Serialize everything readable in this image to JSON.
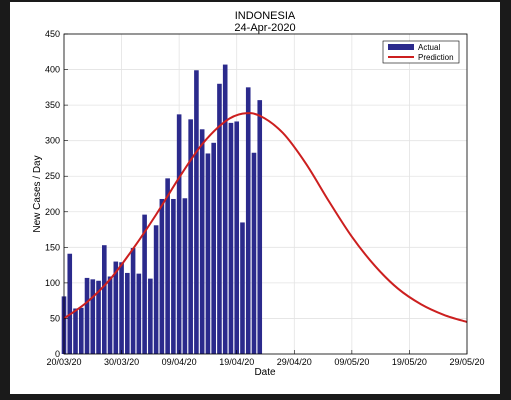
{
  "chart_data": {
    "type": "bar",
    "title": "INDONESIA",
    "subtitle": "24-Apr-2020",
    "xlabel": "Date",
    "ylabel": "New Cases / Day",
    "ylim": [
      0,
      450
    ],
    "yticks": [
      0,
      50,
      100,
      150,
      200,
      250,
      300,
      350,
      400,
      450
    ],
    "xlim": [
      "2020-03-20",
      "2020-05-29"
    ],
    "xticks": [
      "2020-03-20",
      "2020-03-30",
      "2020-04-09",
      "2020-04-19",
      "2020-04-29",
      "2020-05-09",
      "2020-05-19",
      "2020-05-29"
    ],
    "xtick_labels": [
      "20/03/20",
      "30/03/20",
      "09/04/20",
      "19/04/20",
      "29/04/20",
      "09/05/20",
      "19/05/20",
      "29/05/20"
    ],
    "grid": true,
    "legend": "top-right",
    "series": [
      {
        "name": "Actual",
        "kind": "bar",
        "color": "#2b2a8c",
        "x": [
          "2020-03-20",
          "2020-03-21",
          "2020-03-22",
          "2020-03-23",
          "2020-03-24",
          "2020-03-25",
          "2020-03-26",
          "2020-03-27",
          "2020-03-28",
          "2020-03-29",
          "2020-03-30",
          "2020-03-31",
          "2020-04-01",
          "2020-04-02",
          "2020-04-03",
          "2020-04-04",
          "2020-04-05",
          "2020-04-06",
          "2020-04-07",
          "2020-04-08",
          "2020-04-09",
          "2020-04-10",
          "2020-04-11",
          "2020-04-12",
          "2020-04-13",
          "2020-04-14",
          "2020-04-15",
          "2020-04-16",
          "2020-04-17",
          "2020-04-18",
          "2020-04-19",
          "2020-04-20",
          "2020-04-21",
          "2020-04-22",
          "2020-04-23",
          "2020-04-24"
        ],
        "values": [
          81,
          141,
          64,
          65,
          107,
          105,
          103,
          153,
          109,
          130,
          129,
          114,
          149,
          113,
          196,
          106,
          181,
          218,
          247,
          218,
          337,
          219,
          330,
          399,
          316,
          282,
          297,
          380,
          407,
          325,
          327,
          185,
          375,
          283,
          357,
          0
        ]
      },
      {
        "name": "Prediction",
        "kind": "line",
        "color": "#cc1f1f",
        "x": [
          "2020-03-20",
          "2020-03-24",
          "2020-03-28",
          "2020-04-01",
          "2020-04-05",
          "2020-04-09",
          "2020-04-13",
          "2020-04-17",
          "2020-04-20",
          "2020-04-23",
          "2020-04-27",
          "2020-05-01",
          "2020-05-05",
          "2020-05-09",
          "2020-05-13",
          "2020-05-17",
          "2020-05-21",
          "2020-05-25",
          "2020-05-29"
        ],
        "values": [
          50,
          73,
          105,
          148,
          196,
          248,
          295,
          327,
          338,
          335,
          311,
          268,
          215,
          165,
          124,
          92,
          70,
          55,
          45
        ]
      }
    ]
  }
}
